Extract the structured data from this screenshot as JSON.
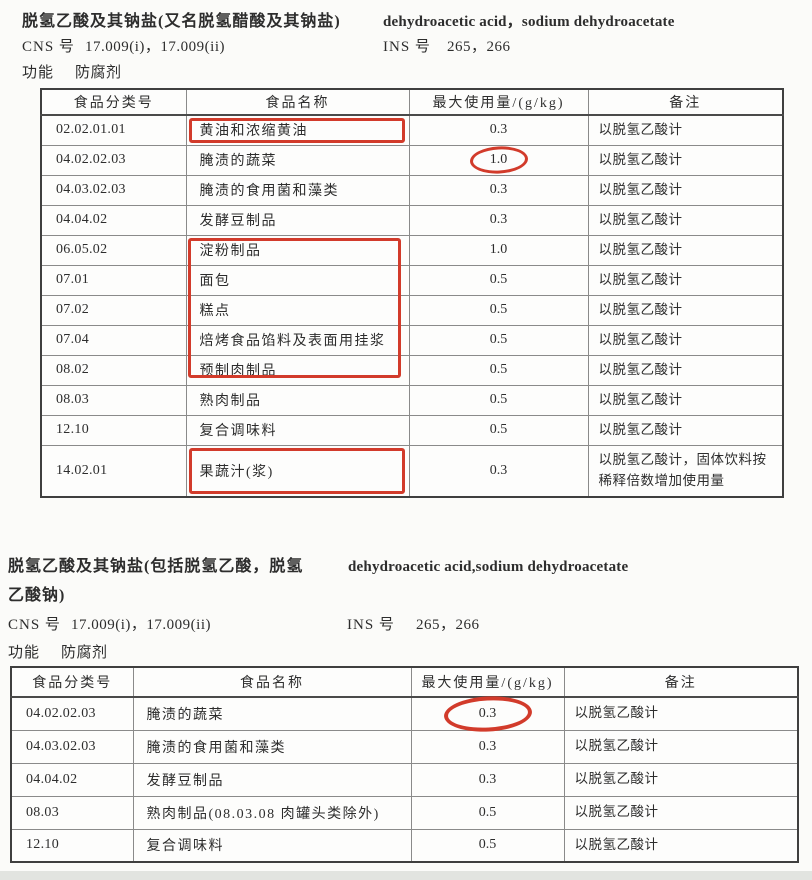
{
  "colors": {
    "annotation_red": "#d23b2b",
    "text": "#2d2d2d",
    "table_border_outer": "#3f3f3f",
    "table_border_inner": "#8a8a8a",
    "page_bg": "#fbfbf9"
  },
  "sections": [
    {
      "name_zh": "脱氢乙酸及其钠盐(又名脱氢醋酸及其钠盐)",
      "name_en": "dehydroacetic acid，sodium dehydroacetate",
      "cns": {
        "label": "CNS 号",
        "value": "17.009(i)，17.009(ii)"
      },
      "ins": {
        "label": "INS 号",
        "value": "265，266"
      },
      "func": {
        "label": "功能",
        "value": "防腐剂"
      },
      "table": {
        "headers": [
          "食品分类号",
          "食品名称",
          "最大使用量/(g/kg)",
          "备注"
        ],
        "rows": [
          {
            "code": "02.02.01.01",
            "name": "黄油和浓缩黄油",
            "max": "0.3",
            "note": "以脱氢乙酸计",
            "name_annotation": "box"
          },
          {
            "code": "04.02.02.03",
            "name": "腌渍的蔬菜",
            "max": "1.0",
            "note": "以脱氢乙酸计",
            "max_annotation": "circle"
          },
          {
            "code": "04.03.02.03",
            "name": "腌渍的食用菌和藻类",
            "max": "0.3",
            "note": "以脱氢乙酸计"
          },
          {
            "code": "04.04.02",
            "name": "发酵豆制品",
            "max": "0.3",
            "note": "以脱氢乙酸计"
          },
          {
            "code": "06.05.02",
            "name": "淀粉制品",
            "max": "1.0",
            "note": "以脱氢乙酸计"
          },
          {
            "code": "07.01",
            "name": "面包",
            "max": "0.5",
            "note": "以脱氢乙酸计"
          },
          {
            "code": "07.02",
            "name": "糕点",
            "max": "0.5",
            "note": "以脱氢乙酸计"
          },
          {
            "code": "07.04",
            "name": "焙烤食品馅料及表面用挂浆",
            "max": "0.5",
            "note": "以脱氢乙酸计"
          },
          {
            "code": "08.02",
            "name": "预制肉制品",
            "max": "0.5",
            "note": "以脱氢乙酸计"
          },
          {
            "code": "08.03",
            "name": "熟肉制品",
            "max": "0.5",
            "note": "以脱氢乙酸计"
          },
          {
            "code": "12.10",
            "name": "复合调味料",
            "max": "0.5",
            "note": "以脱氢乙酸计"
          },
          {
            "code": "14.02.01",
            "name": "果蔬汁(浆)",
            "max": "0.3",
            "note": "以脱氢乙酸计，固体饮料按稀释倍数增加使用量",
            "name_annotation": "box",
            "tall": true
          }
        ],
        "group_annotation": {
          "column": "name",
          "from_row": 4,
          "to_row": 8
        }
      }
    },
    {
      "name_zh": "脱氢乙酸及其钠盐(包括脱氢乙酸，脱氢乙酸钠)",
      "name_en": "dehydroacetic acid,sodium dehydroacetate",
      "cns": {
        "label": "CNS 号",
        "value": "17.009(i)，17.009(ii)"
      },
      "ins": {
        "label": "INS 号",
        "value": "265，266"
      },
      "func": {
        "label": "功能",
        "value": "防腐剂"
      },
      "table": {
        "headers": [
          "食品分类号",
          "食品名称",
          "最大使用量/(g/kg)",
          "备注"
        ],
        "rows": [
          {
            "code": "04.02.02.03",
            "name": "腌渍的蔬菜",
            "max": "0.3",
            "note": "以脱氢乙酸计",
            "max_annotation": "circle"
          },
          {
            "code": "04.03.02.03",
            "name": "腌渍的食用菌和藻类",
            "max": "0.3",
            "note": "以脱氢乙酸计"
          },
          {
            "code": "04.04.02",
            "name": "发酵豆制品",
            "max": "0.3",
            "note": "以脱氢乙酸计"
          },
          {
            "code": "08.03",
            "name": "熟肉制品(08.03.08 肉罐头类除外)",
            "max": "0.5",
            "note": "以脱氢乙酸计"
          },
          {
            "code": "12.10",
            "name": "复合调味料",
            "max": "0.5",
            "note": "以脱氢乙酸计"
          }
        ]
      }
    }
  ]
}
